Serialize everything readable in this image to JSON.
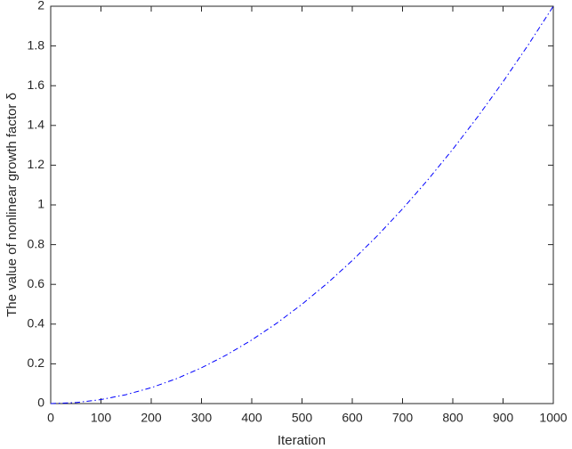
{
  "chart_data": {
    "type": "line",
    "xlabel": "Iteration",
    "ylabel": "The value of nonlinear growth factor δ",
    "x": [
      0,
      50,
      100,
      150,
      200,
      250,
      300,
      350,
      400,
      450,
      500,
      550,
      600,
      650,
      700,
      750,
      800,
      850,
      900,
      950,
      1000
    ],
    "values": [
      0,
      0.005,
      0.02,
      0.045,
      0.08,
      0.125,
      0.18,
      0.245,
      0.32,
      0.405,
      0.5,
      0.605,
      0.72,
      0.845,
      0.98,
      1.125,
      1.28,
      1.445,
      1.62,
      1.805,
      2
    ],
    "color": "#0000ff",
    "xlim": [
      0,
      1000
    ],
    "xticks": [
      0,
      100,
      200,
      300,
      400,
      500,
      600,
      700,
      800,
      900,
      1000
    ],
    "ylim": [
      0,
      2
    ],
    "yticks": [
      0,
      0.2,
      0.4,
      0.6,
      0.8,
      1,
      1.2,
      1.4,
      1.6,
      1.8,
      2
    ],
    "grid": false
  }
}
